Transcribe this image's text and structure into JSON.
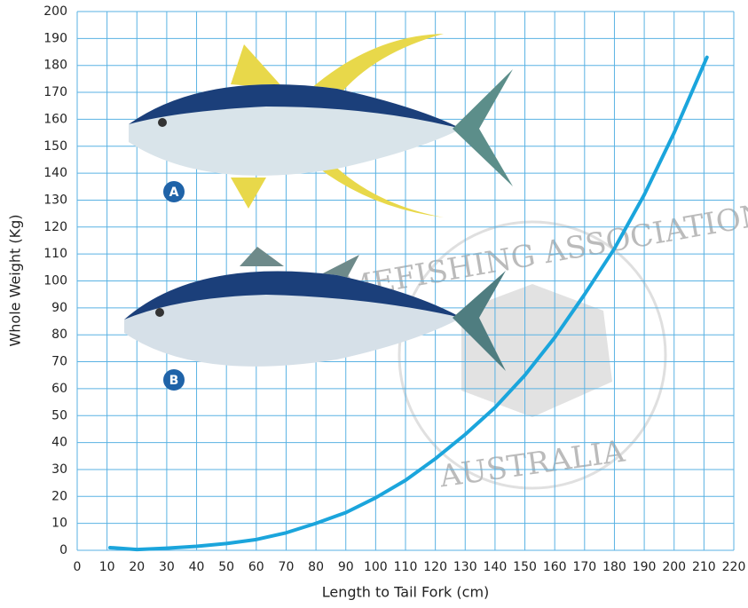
{
  "chart_data": {
    "type": "line",
    "xlabel": "Length to Tail Fork (cm)",
    "ylabel": "Whole Weight (Kg)",
    "annotations": [
      "A",
      "B"
    ],
    "watermark": [
      "GAMEFISHING ASSOCIATION",
      "AUSTRALIA"
    ],
    "x": [
      11,
      20,
      30,
      40,
      50,
      60,
      70,
      80,
      90,
      100,
      110,
      120,
      130,
      140,
      150,
      160,
      170,
      180,
      190,
      200,
      211
    ],
    "series": [
      {
        "color": "#1ba5dc",
        "values": [
          1,
          0.3,
          0.8,
          1.5,
          2.5,
          4,
          6.5,
          10,
          14,
          19.5,
          26,
          34,
          43,
          53,
          65,
          79,
          95,
          112,
          132,
          155,
          183
        ]
      }
    ],
    "xlim": [
      0,
      220
    ],
    "ylim": [
      0,
      200
    ],
    "xticks": [
      0,
      10,
      20,
      30,
      40,
      50,
      60,
      70,
      80,
      90,
      100,
      110,
      120,
      130,
      140,
      150,
      160,
      170,
      180,
      190,
      200,
      210,
      220
    ],
    "yticks": [
      0,
      10,
      20,
      30,
      40,
      50,
      60,
      70,
      80,
      90,
      100,
      110,
      120,
      130,
      140,
      150,
      160,
      170,
      180,
      190,
      200
    ],
    "grid": true
  }
}
